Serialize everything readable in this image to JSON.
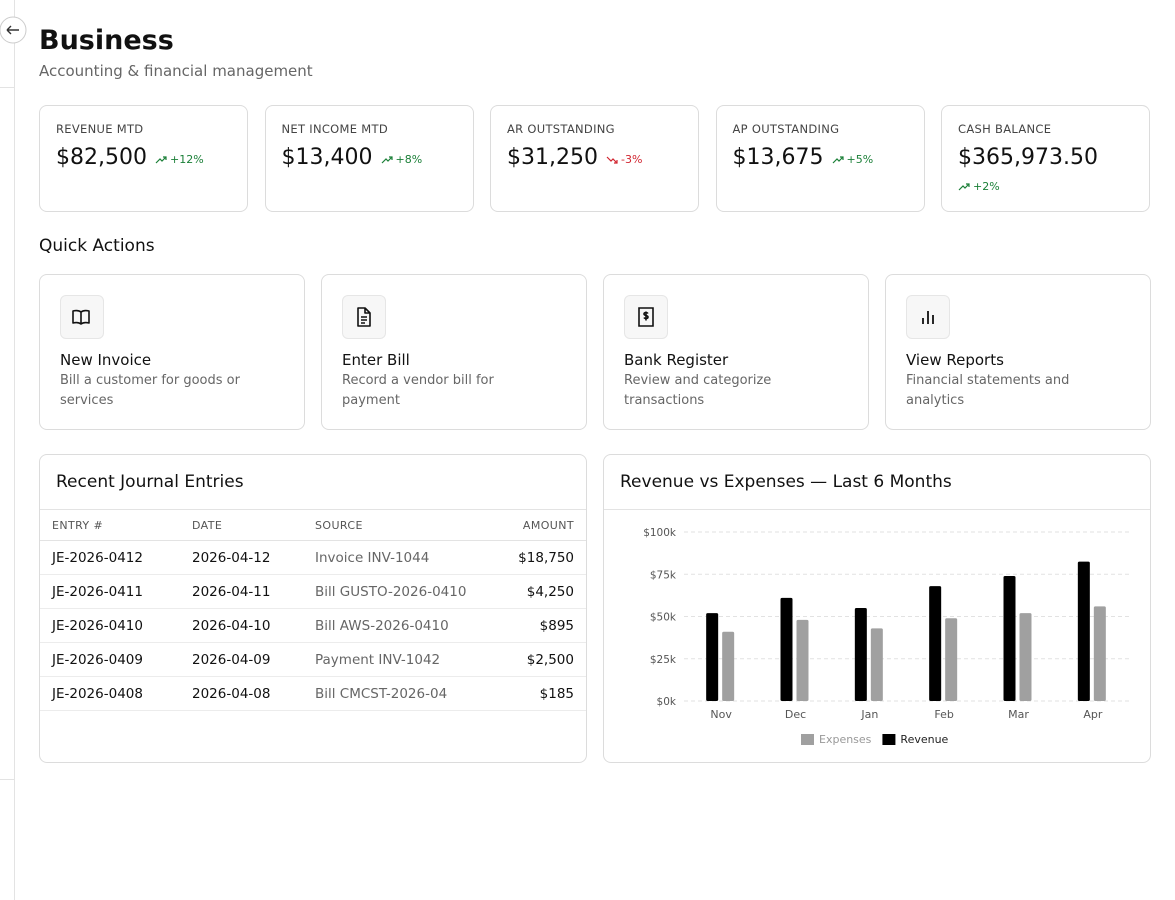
{
  "header": {
    "title": "Business",
    "subtitle": "Accounting & financial management"
  },
  "kpis": [
    {
      "label": "REVENUE MTD",
      "value": "$82,500",
      "change": "+12%",
      "trend": "up"
    },
    {
      "label": "NET INCOME MTD",
      "value": "$13,400",
      "change": "+8%",
      "trend": "up"
    },
    {
      "label": "AR OUTSTANDING",
      "value": "$31,250",
      "change": "-3%",
      "trend": "down"
    },
    {
      "label": "AP OUTSTANDING",
      "value": "$13,675",
      "change": "+5%",
      "trend": "up"
    },
    {
      "label": "CASH BALANCE",
      "value": "$365,973.50",
      "change": "+2%",
      "trend": "up"
    }
  ],
  "quick_actions": {
    "title": "Quick Actions",
    "items": [
      {
        "title": "New Invoice",
        "description": "Bill a customer for goods or services"
      },
      {
        "title": "Enter Bill",
        "description": "Record a vendor bill for payment"
      },
      {
        "title": "Bank Register",
        "description": "Review and categorize transactions"
      },
      {
        "title": "View Reports",
        "description": "Financial statements and analytics"
      }
    ]
  },
  "journal": {
    "title": "Recent Journal Entries",
    "columns": [
      "ENTRY #",
      "DATE",
      "SOURCE",
      "AMOUNT"
    ],
    "rows": [
      [
        "JE-2026-0412",
        "2026-04-12",
        "Invoice INV-1044",
        "$18,750"
      ],
      [
        "JE-2026-0411",
        "2026-04-11",
        "Bill GUSTO-2026-0410",
        "$4,250"
      ],
      [
        "JE-2026-0410",
        "2026-04-10",
        "Bill AWS-2026-0410",
        "$895"
      ],
      [
        "JE-2026-0409",
        "2026-04-09",
        "Payment INV-1042",
        "$2,500"
      ],
      [
        "JE-2026-0408",
        "2026-04-08",
        "Bill CMCST-2026-04",
        "$185"
      ]
    ]
  },
  "chart_data": {
    "type": "bar",
    "title": "Revenue vs Expenses — Last 6 Months",
    "categories": [
      "Nov",
      "Dec",
      "Jan",
      "Feb",
      "Mar",
      "Apr"
    ],
    "series": [
      {
        "name": "Revenue",
        "color": "#000000",
        "values": [
          52,
          61,
          55,
          68,
          74,
          82.5
        ]
      },
      {
        "name": "Expenses",
        "color": "#a0a0a0",
        "values": [
          41,
          48,
          43,
          49,
          52,
          56
        ]
      }
    ],
    "ylim": [
      0,
      100
    ],
    "yticks": [
      {
        "value": 0,
        "label": "$0k"
      },
      {
        "value": 25,
        "label": "$25k"
      },
      {
        "value": 50,
        "label": "$50k"
      },
      {
        "value": 75,
        "label": "$75k"
      },
      {
        "value": 100,
        "label": "$100k"
      }
    ],
    "grid": true
  }
}
